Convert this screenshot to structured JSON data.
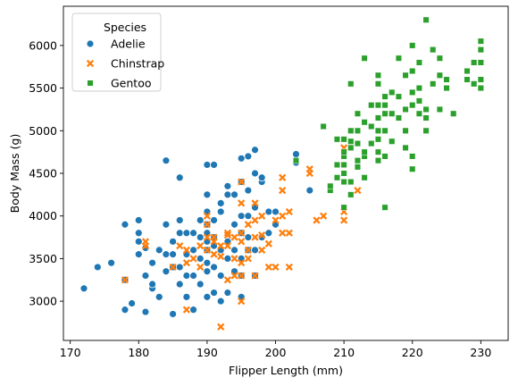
{
  "chart_data": {
    "type": "scatter",
    "title": "",
    "xlabel": "Flipper Length (mm)",
    "ylabel": "Body Mass (g)",
    "xlim": [
      169,
      234
    ],
    "ylim": [
      2540,
      6460
    ],
    "xticks": [
      170,
      180,
      190,
      200,
      210,
      220,
      230
    ],
    "yticks": [
      3000,
      3500,
      4000,
      4500,
      5000,
      5500,
      6000
    ],
    "grid": false,
    "legend": {
      "title": "Species",
      "placement": "top-left"
    },
    "series": [
      {
        "name": "Adelie",
        "color": "#1f77b4",
        "marker": "circle",
        "points": [
          [
            172,
            3150
          ],
          [
            174,
            3400
          ],
          [
            176,
            3450
          ],
          [
            178,
            2900
          ],
          [
            178,
            3250
          ],
          [
            178,
            3900
          ],
          [
            179,
            2975
          ],
          [
            180,
            3550
          ],
          [
            180,
            3700
          ],
          [
            180,
            3800
          ],
          [
            180,
            3950
          ],
          [
            181,
            3300
          ],
          [
            181,
            3625
          ],
          [
            181,
            2875
          ],
          [
            182,
            3150
          ],
          [
            182,
            3200
          ],
          [
            182,
            3450
          ],
          [
            183,
            3050
          ],
          [
            183,
            3600
          ],
          [
            184,
            3350
          ],
          [
            184,
            3550
          ],
          [
            184,
            3900
          ],
          [
            184,
            4650
          ],
          [
            185,
            2850
          ],
          [
            185,
            3400
          ],
          [
            185,
            3550
          ],
          [
            185,
            3700
          ],
          [
            186,
            3200
          ],
          [
            186,
            3400
          ],
          [
            186,
            3800
          ],
          [
            186,
            3950
          ],
          [
            186,
            4450
          ],
          [
            187,
            3050
          ],
          [
            187,
            3300
          ],
          [
            187,
            3550
          ],
          [
            187,
            3800
          ],
          [
            188,
            2900
          ],
          [
            188,
            3300
          ],
          [
            188,
            3600
          ],
          [
            188,
            3800
          ],
          [
            189,
            3200
          ],
          [
            189,
            3500
          ],
          [
            189,
            3750
          ],
          [
            189,
            3950
          ],
          [
            190,
            3050
          ],
          [
            190,
            3350
          ],
          [
            190,
            3450
          ],
          [
            190,
            3600
          ],
          [
            190,
            3700
          ],
          [
            190,
            3800
          ],
          [
            190,
            3900
          ],
          [
            190,
            4050
          ],
          [
            190,
            4250
          ],
          [
            190,
            4600
          ],
          [
            191,
            3100
          ],
          [
            191,
            3400
          ],
          [
            191,
            3650
          ],
          [
            191,
            3750
          ],
          [
            191,
            3950
          ],
          [
            191,
            4600
          ],
          [
            192,
            3000
          ],
          [
            192,
            3300
          ],
          [
            192,
            3600
          ],
          [
            192,
            4050
          ],
          [
            192,
            4150
          ],
          [
            193,
            3100
          ],
          [
            193,
            3500
          ],
          [
            193,
            3700
          ],
          [
            193,
            4250
          ],
          [
            193,
            4350
          ],
          [
            194,
            3350
          ],
          [
            194,
            3600
          ],
          [
            194,
            3900
          ],
          [
            194,
            4250
          ],
          [
            195,
            3050
          ],
          [
            195,
            3300
          ],
          [
            195,
            3500
          ],
          [
            195,
            3800
          ],
          [
            195,
            4000
          ],
          [
            195,
            4400
          ],
          [
            195,
            4675
          ],
          [
            196,
            3600
          ],
          [
            196,
            3750
          ],
          [
            196,
            4000
          ],
          [
            196,
            4300
          ],
          [
            196,
            4700
          ],
          [
            197,
            3300
          ],
          [
            197,
            3600
          ],
          [
            197,
            4100
          ],
          [
            197,
            4500
          ],
          [
            197,
            4775
          ],
          [
            198,
            3750
          ],
          [
            198,
            4400
          ],
          [
            198,
            4450
          ],
          [
            199,
            3800
          ],
          [
            199,
            4050
          ],
          [
            200,
            3900
          ],
          [
            200,
            4050
          ],
          [
            203,
            4725
          ],
          [
            203,
            4625
          ],
          [
            205,
            4300
          ]
        ]
      },
      {
        "name": "Chinstrap",
        "color": "#ff7f0e",
        "marker": "x",
        "points": [
          [
            178,
            3250
          ],
          [
            181,
            3650
          ],
          [
            181,
            3700
          ],
          [
            185,
            3400
          ],
          [
            186,
            3650
          ],
          [
            187,
            2900
          ],
          [
            187,
            3450
          ],
          [
            187,
            3600
          ],
          [
            188,
            3500
          ],
          [
            189,
            3400
          ],
          [
            189,
            3650
          ],
          [
            190,
            3600
          ],
          [
            190,
            3750
          ],
          [
            190,
            3900
          ],
          [
            190,
            4000
          ],
          [
            191,
            3550
          ],
          [
            191,
            3700
          ],
          [
            191,
            3750
          ],
          [
            192,
            3525
          ],
          [
            192,
            3650
          ],
          [
            192,
            2700
          ],
          [
            193,
            3250
          ],
          [
            193,
            3650
          ],
          [
            193,
            3775
          ],
          [
            193,
            3800
          ],
          [
            194,
            3300
          ],
          [
            194,
            3500
          ],
          [
            194,
            3750
          ],
          [
            195,
            3300
          ],
          [
            195,
            3450
          ],
          [
            195,
            3700
          ],
          [
            195,
            3800
          ],
          [
            195,
            4150
          ],
          [
            195,
            4400
          ],
          [
            195,
            3000
          ],
          [
            196,
            3500
          ],
          [
            196,
            3600
          ],
          [
            196,
            3900
          ],
          [
            197,
            3300
          ],
          [
            197,
            3750
          ],
          [
            197,
            3950
          ],
          [
            197,
            4150
          ],
          [
            198,
            3600
          ],
          [
            198,
            3775
          ],
          [
            198,
            4000
          ],
          [
            199,
            3400
          ],
          [
            199,
            3675
          ],
          [
            200,
            3400
          ],
          [
            200,
            3950
          ],
          [
            201,
            3800
          ],
          [
            201,
            4000
          ],
          [
            201,
            4300
          ],
          [
            201,
            4450
          ],
          [
            202,
            3400
          ],
          [
            202,
            3800
          ],
          [
            202,
            4050
          ],
          [
            205,
            4500
          ],
          [
            205,
            4550
          ],
          [
            206,
            3950
          ],
          [
            207,
            4000
          ],
          [
            210,
            3950
          ],
          [
            210,
            4050
          ],
          [
            210,
            4800
          ],
          [
            212,
            4300
          ]
        ]
      },
      {
        "name": "Gentoo",
        "color": "#2ca02c",
        "marker": "square",
        "points": [
          [
            203,
            4650
          ],
          [
            207,
            5050
          ],
          [
            208,
            4300
          ],
          [
            208,
            4350
          ],
          [
            209,
            4450
          ],
          [
            209,
            4600
          ],
          [
            209,
            4900
          ],
          [
            210,
            4100
          ],
          [
            210,
            4400
          ],
          [
            210,
            4500
          ],
          [
            210,
            4600
          ],
          [
            210,
            4700
          ],
          [
            210,
            4750
          ],
          [
            210,
            4900
          ],
          [
            211,
            4250
          ],
          [
            211,
            4400
          ],
          [
            211,
            4800
          ],
          [
            211,
            4875
          ],
          [
            211,
            5000
          ],
          [
            211,
            5550
          ],
          [
            212,
            4575
          ],
          [
            212,
            4650
          ],
          [
            212,
            4850
          ],
          [
            212,
            5000
          ],
          [
            212,
            5200
          ],
          [
            213,
            4450
          ],
          [
            213,
            4700
          ],
          [
            213,
            4750
          ],
          [
            213,
            5100
          ],
          [
            213,
            5850
          ],
          [
            214,
            4850
          ],
          [
            214,
            5050
          ],
          [
            214,
            5300
          ],
          [
            215,
            4650
          ],
          [
            215,
            4750
          ],
          [
            215,
            4900
          ],
          [
            215,
            5000
          ],
          [
            215,
            5150
          ],
          [
            215,
            5300
          ],
          [
            215,
            5550
          ],
          [
            215,
            5650
          ],
          [
            216,
            4100
          ],
          [
            216,
            4700
          ],
          [
            216,
            5000
          ],
          [
            216,
            5200
          ],
          [
            216,
            5300
          ],
          [
            216,
            5400
          ],
          [
            217,
            4875
          ],
          [
            217,
            5200
          ],
          [
            217,
            5450
          ],
          [
            218,
            5150
          ],
          [
            218,
            5400
          ],
          [
            218,
            5850
          ],
          [
            219,
            4800
          ],
          [
            219,
            5000
          ],
          [
            219,
            5250
          ],
          [
            219,
            5650
          ],
          [
            220,
            4550
          ],
          [
            220,
            4700
          ],
          [
            220,
            5300
          ],
          [
            220,
            5450
          ],
          [
            220,
            5700
          ],
          [
            220,
            6000
          ],
          [
            221,
            5200
          ],
          [
            221,
            5350
          ],
          [
            221,
            5500
          ],
          [
            221,
            5800
          ],
          [
            222,
            5000
          ],
          [
            222,
            5150
          ],
          [
            222,
            5250
          ],
          [
            222,
            6300
          ],
          [
            223,
            5550
          ],
          [
            223,
            5950
          ],
          [
            224,
            5250
          ],
          [
            224,
            5650
          ],
          [
            224,
            5850
          ],
          [
            225,
            5500
          ],
          [
            225,
            5600
          ],
          [
            226,
            5200
          ],
          [
            228,
            5600
          ],
          [
            228,
            5700
          ],
          [
            229,
            5550
          ],
          [
            229,
            5800
          ],
          [
            230,
            5500
          ],
          [
            230,
            5600
          ],
          [
            230,
            5800
          ],
          [
            230,
            5950
          ],
          [
            230,
            6050
          ]
        ]
      }
    ]
  }
}
